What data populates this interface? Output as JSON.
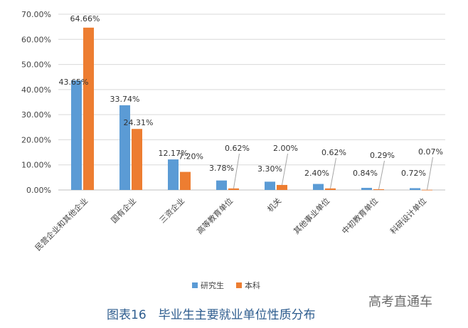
{
  "chart_data": {
    "type": "bar",
    "categories": [
      "民营企业和其他企业",
      "国有企业",
      "三资企业",
      "高等教育单位",
      "机关",
      "其他事业单位",
      "中初教育单位",
      "科研设计单位"
    ],
    "series": [
      {
        "name": "研究生",
        "values": [
          43.65,
          33.74,
          12.17,
          3.78,
          3.3,
          2.4,
          0.84,
          0.72
        ],
        "labels": [
          "43.65%",
          "33.74%",
          "12.17%",
          "3.78%",
          "3.30%",
          "2.40%",
          "0.84%",
          "0.72%"
        ]
      },
      {
        "name": "本科",
        "values": [
          64.66,
          24.31,
          7.2,
          0.62,
          2.0,
          0.62,
          0.29,
          0.07
        ],
        "labels": [
          "64.66%",
          "24.31%",
          "7.20%",
          "0.62%",
          "2.00%",
          "0.62%",
          "0.29%",
          "0.07%"
        ]
      }
    ],
    "ylim": [
      0,
      70
    ],
    "yticks": [
      "0.00%",
      "10.00%",
      "20.00%",
      "30.00%",
      "40.00%",
      "50.00%",
      "60.00%",
      "70.00%"
    ],
    "grid": true,
    "legend_position": "bottom",
    "colors": {
      "研究生": "#5b9bd5",
      "本科": "#ed7d31"
    },
    "title": "",
    "xlabel": "",
    "ylabel": ""
  },
  "caption": "图表16　毕业生主要就业单位性质分布",
  "watermark": "高考直通车"
}
